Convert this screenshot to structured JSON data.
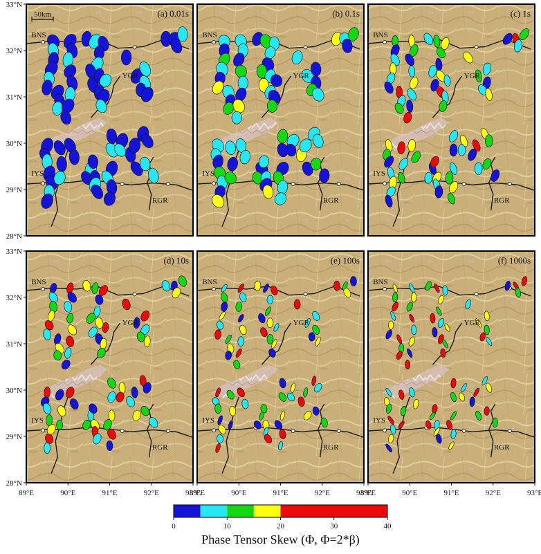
{
  "chart_data": {
    "type": "scatter",
    "figure_kind": "phase tensor skew maps",
    "panels": [
      {
        "label": "(a) 0.01s",
        "period": "0.01s"
      },
      {
        "label": "(b) 0.1s",
        "period": "0.1s"
      },
      {
        "label": "(c) 1s",
        "period": "1s"
      },
      {
        "label": "(d) 10s",
        "period": "10s"
      },
      {
        "label": "(e) 100s",
        "period": "100s"
      },
      {
        "label": "(f) 1000s",
        "period": "1000s"
      }
    ],
    "x_ticks": [
      "89°E",
      "90°E",
      "91°E",
      "92°E",
      "93°E"
    ],
    "y_ticks": [
      "33°N",
      "32°N",
      "31°N",
      "30°N",
      "29°N",
      "28°N"
    ],
    "xlim": [
      89,
      93
    ],
    "ylim": [
      28,
      33
    ],
    "scale_bar": "50km",
    "map_labels": [
      "BNS",
      "YGR",
      "IYS",
      "RGR"
    ],
    "colorbar": {
      "title": "Phase Tensor Skew (Φ, Φ=2*β)",
      "ticks": [
        "0",
        "10",
        "20",
        "30",
        "40"
      ],
      "range": [
        0,
        40
      ],
      "bins": [
        {
          "from": 0,
          "to": 5,
          "color": "#1414d8"
        },
        {
          "from": 5,
          "to": 10,
          "color": "#27e8f2"
        },
        {
          "from": 10,
          "to": 15,
          "color": "#14d814"
        },
        {
          "from": 15,
          "to": 20,
          "color": "#ffff10"
        },
        {
          "from": 20,
          "to": 40,
          "color": "#ea0a0a"
        }
      ]
    },
    "colors": {
      "terrain_base": "#c9b07a",
      "terrain_light": "#e5d4a2",
      "terrain_dark": "#9b7e4c",
      "terrain_pink": "#d9b9c8",
      "fault_line": "#1a1a1a",
      "frame": "#000000",
      "ellipse_outline": "#111111"
    },
    "stations": [
      {
        "lon": 89.65,
        "lat": 32.2
      },
      {
        "lon": 89.65,
        "lat": 32.0
      },
      {
        "lon": 89.65,
        "lat": 31.8
      },
      {
        "lon": 89.6,
        "lat": 31.6
      },
      {
        "lon": 89.55,
        "lat": 31.4
      },
      {
        "lon": 89.5,
        "lat": 31.2
      },
      {
        "lon": 89.75,
        "lat": 31.1
      },
      {
        "lon": 89.8,
        "lat": 30.9
      },
      {
        "lon": 89.75,
        "lat": 30.75
      },
      {
        "lon": 90.05,
        "lat": 32.2
      },
      {
        "lon": 90.1,
        "lat": 32.0
      },
      {
        "lon": 90.0,
        "lat": 31.8
      },
      {
        "lon": 90.05,
        "lat": 31.55
      },
      {
        "lon": 90.1,
        "lat": 31.3
      },
      {
        "lon": 90.05,
        "lat": 31.05
      },
      {
        "lon": 90.0,
        "lat": 30.8
      },
      {
        "lon": 89.95,
        "lat": 30.55
      },
      {
        "lon": 90.45,
        "lat": 32.25
      },
      {
        "lon": 90.65,
        "lat": 32.2
      },
      {
        "lon": 90.85,
        "lat": 32.15
      },
      {
        "lon": 90.75,
        "lat": 31.95
      },
      {
        "lon": 90.7,
        "lat": 31.7
      },
      {
        "lon": 90.55,
        "lat": 31.55
      },
      {
        "lon": 90.75,
        "lat": 31.45
      },
      {
        "lon": 90.9,
        "lat": 31.35
      },
      {
        "lon": 90.6,
        "lat": 31.25
      },
      {
        "lon": 90.75,
        "lat": 31.1
      },
      {
        "lon": 90.85,
        "lat": 31.0
      },
      {
        "lon": 90.8,
        "lat": 30.8
      },
      {
        "lon": 91.4,
        "lat": 31.85
      },
      {
        "lon": 91.65,
        "lat": 31.45
      },
      {
        "lon": 91.85,
        "lat": 31.3
      },
      {
        "lon": 91.75,
        "lat": 31.15
      },
      {
        "lon": 91.9,
        "lat": 31.05
      },
      {
        "lon": 91.85,
        "lat": 31.6
      },
      {
        "lon": 92.35,
        "lat": 32.25
      },
      {
        "lon": 92.55,
        "lat": 32.25
      },
      {
        "lon": 92.6,
        "lat": 32.1
      },
      {
        "lon": 92.75,
        "lat": 32.35
      },
      {
        "lon": 89.5,
        "lat": 29.95
      },
      {
        "lon": 89.45,
        "lat": 29.75
      },
      {
        "lon": 89.5,
        "lat": 29.6
      },
      {
        "lon": 89.55,
        "lat": 29.35
      },
      {
        "lon": 89.6,
        "lat": 29.15
      },
      {
        "lon": 89.55,
        "lat": 28.95
      },
      {
        "lon": 89.5,
        "lat": 28.75
      },
      {
        "lon": 89.8,
        "lat": 29.9
      },
      {
        "lon": 89.85,
        "lat": 29.55
      },
      {
        "lon": 89.8,
        "lat": 29.25
      },
      {
        "lon": 90.05,
        "lat": 29.95
      },
      {
        "lon": 90.15,
        "lat": 29.7
      },
      {
        "lon": 90.55,
        "lat": 29.45
      },
      {
        "lon": 90.45,
        "lat": 29.25
      },
      {
        "lon": 90.65,
        "lat": 29.25
      },
      {
        "lon": 90.65,
        "lat": 29.1
      },
      {
        "lon": 90.7,
        "lat": 28.95
      },
      {
        "lon": 90.6,
        "lat": 29.6
      },
      {
        "lon": 91.05,
        "lat": 29.45
      },
      {
        "lon": 90.95,
        "lat": 29.25
      },
      {
        "lon": 91.05,
        "lat": 29.05
      },
      {
        "lon": 91.0,
        "lat": 28.8
      },
      {
        "lon": 91.05,
        "lat": 29.85
      },
      {
        "lon": 91.05,
        "lat": 30.15
      },
      {
        "lon": 91.3,
        "lat": 30.05
      },
      {
        "lon": 91.25,
        "lat": 29.85
      },
      {
        "lon": 91.5,
        "lat": 29.75
      },
      {
        "lon": 91.6,
        "lat": 29.95
      },
      {
        "lon": 91.65,
        "lat": 29.45
      },
      {
        "lon": 91.85,
        "lat": 29.55
      },
      {
        "lon": 91.8,
        "lat": 30.2
      },
      {
        "lon": 91.9,
        "lat": 30.05
      },
      {
        "lon": 92.05,
        "lat": 29.3
      }
    ]
  },
  "legend": {
    "title": "Phase Tensor Skew (Φ, Φ=2*β)"
  }
}
